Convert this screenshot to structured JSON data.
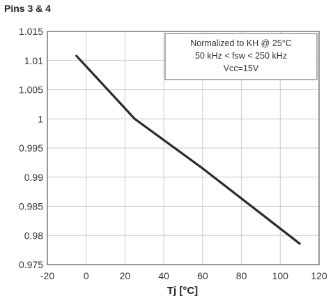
{
  "chart_data": {
    "type": "line",
    "title": "Pins 3 & 4",
    "xlabel": "Tj [°C]",
    "ylabel": "",
    "xlim": [
      -20,
      120
    ],
    "ylim": [
      0.975,
      1.015
    ],
    "x_ticks": [
      -20,
      0,
      20,
      40,
      60,
      80,
      100,
      120
    ],
    "x_tick_labels": [
      "-20",
      "0",
      "20",
      "40",
      "60",
      "80",
      "100",
      "120"
    ],
    "y_ticks": [
      0.975,
      0.98,
      0.985,
      0.99,
      0.995,
      1,
      1.005,
      1.01,
      1.015
    ],
    "y_tick_labels": [
      "0.975",
      "0.98",
      "0.985",
      "0.99",
      "0.995",
      "1",
      "1.005",
      "1.01",
      "1.015"
    ],
    "grid": true,
    "series": [
      {
        "x": [
          -5,
          25,
          60,
          110
        ],
        "y": [
          1.0108,
          1.0,
          0.9915,
          0.9786
        ],
        "color": "#2b2b2b"
      }
    ],
    "annotation": {
      "lines": [
        "Normalized to KH @ 25°C",
        "50 kHz < fsw < 250 kHz",
        "Vcc=15V"
      ],
      "placement": "top-right"
    }
  }
}
